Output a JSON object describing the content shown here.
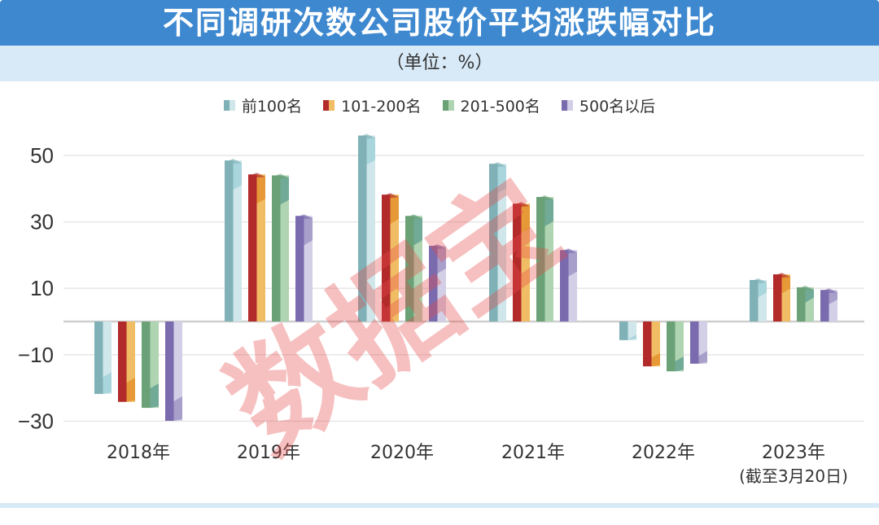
{
  "header": {
    "title": "不同调研次数公司股价平均涨跌幅对比",
    "unit": "（单位：%）"
  },
  "legend": [
    {
      "label": "前100名",
      "dark": "#7fb1b6",
      "light": "#cfe6ea",
      "accent": "#a4d3dc"
    },
    {
      "label": "101-200名",
      "dark": "#b22a2a",
      "light": "#f0bd64",
      "accent": "#e59533"
    },
    {
      "label": "201-500名",
      "dark": "#6ba177",
      "light": "#afd4b1",
      "accent": "#6aa593"
    },
    {
      "label": "500名以后",
      "dark": "#7a6aae",
      "light": "#d3cfe6",
      "accent": "#a399c8"
    }
  ],
  "watermark": "数据宝",
  "chart_data": {
    "type": "bar",
    "title": "不同调研次数公司股价平均涨跌幅对比",
    "subtitle": "（单位：%）",
    "xlabel": "",
    "ylabel": "",
    "categories": [
      "2018年",
      "2019年",
      "2020年",
      "2021年",
      "2022年",
      "2023年\n(截至3月20日)"
    ],
    "category_labels": [
      {
        "line1": "2018年",
        "line2": ""
      },
      {
        "line1": "2019年",
        "line2": ""
      },
      {
        "line1": "2020年",
        "line2": ""
      },
      {
        "line1": "2021年",
        "line2": ""
      },
      {
        "line1": "2022年",
        "line2": ""
      },
      {
        "line1": "2023年",
        "line2": "(截至3月20日)"
      }
    ],
    "series": [
      {
        "name": "前100名",
        "values": [
          -21.8,
          48.5,
          56.0,
          47.5,
          -5.6,
          12.5
        ]
      },
      {
        "name": "101-200名",
        "values": [
          -24.2,
          44.3,
          38.2,
          35.5,
          -13.5,
          14.2
        ]
      },
      {
        "name": "201-500名",
        "values": [
          -26.0,
          44.0,
          31.8,
          37.5,
          -15.0,
          10.3
        ]
      },
      {
        "name": "500名以后",
        "values": [
          -29.9,
          31.8,
          22.8,
          21.5,
          -12.7,
          9.5
        ]
      }
    ],
    "yticks": [
      50,
      30,
      10,
      -10,
      -30
    ],
    "ytick_labels": [
      "50",
      "30",
      "10",
      "−10",
      "−30"
    ],
    "ylim": [
      -32,
      58
    ],
    "grid": true,
    "legend_position": "top"
  }
}
